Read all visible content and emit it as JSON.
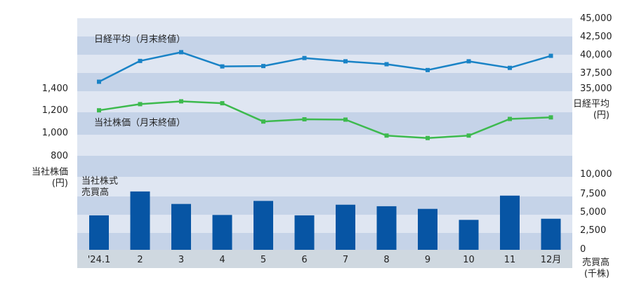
{
  "chart_data": [
    {
      "type": "line",
      "title": "",
      "series": [
        {
          "name": "日経平均（月末終値）",
          "color": "#1a83c6",
          "values": [
            36300,
            39150,
            40350,
            38400,
            38450,
            39550,
            39100,
            38700,
            37900,
            39100,
            38200,
            39850
          ]
        },
        {
          "name": "当社株価（月末終値）",
          "color": "#3dba4e",
          "values": [
            1205,
            1260,
            1285,
            1268,
            1105,
            1125,
            1122,
            980,
            958,
            980,
            1128,
            1142
          ]
        }
      ],
      "axes": {
        "left": {
          "label_line1": "当社株価",
          "label_line2": "(円)",
          "ticks": [
            "1,400",
            "1,200",
            "1,000",
            "800"
          ],
          "range": [
            800,
            1400
          ]
        },
        "right": {
          "label_line1": "日経平均",
          "label_line2": "(円)",
          "ticks": [
            "45,000",
            "42,500",
            "40,000",
            "37,500",
            "35,000"
          ],
          "range": [
            35000,
            45000
          ]
        }
      }
    },
    {
      "type": "bar",
      "series": [
        {
          "name": "当社株式売買高",
          "color": "#0755a4",
          "values": [
            4550,
            7700,
            6050,
            4600,
            6450,
            4550,
            5950,
            5750,
            5400,
            3950,
            7150,
            4100
          ]
        }
      ],
      "legend_label_line1": "当社株式",
      "legend_label_line2": "売買高",
      "axes": {
        "right": {
          "label_line1": "売買高",
          "label_line2": "(千株)",
          "ticks": [
            "10,000",
            "7,500",
            "5,000",
            "2,500",
            "0"
          ],
          "range": [
            0,
            10000
          ]
        }
      }
    }
  ],
  "categories": [
    "'24.1",
    "2",
    "3",
    "4",
    "5",
    "6",
    "7",
    "8",
    "9",
    "10",
    "11",
    "12月"
  ],
  "colors": {
    "band_dark": "#c5d3e8",
    "band_light": "#dfe6f2",
    "axis_strip": "#cfd8e0"
  }
}
